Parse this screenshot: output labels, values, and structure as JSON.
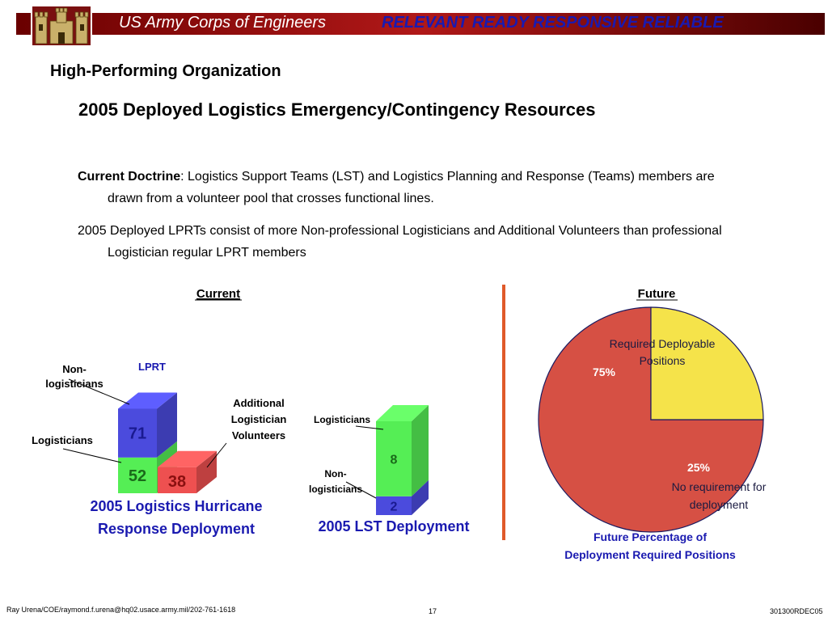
{
  "header": {
    "organization": "US Army Corps of Engineers",
    "motto": "RELEVANT   READY   RESPONSIVE  RELIABLE",
    "bar_color": "#8b0a0a",
    "motto_color": "#1a1ab0"
  },
  "section_title": "High-Performing Organization",
  "slide_title": "2005 Deployed Logistics Emergency/Contingency Resources",
  "paragraphs": {
    "doctrine_label": "Current Doctrine",
    "doctrine_line1": ": Logistics Support Teams (LST) and Logistics Planning and Response (Teams) members are",
    "doctrine_line2": "drawn from a volunteer pool that crosses functional lines.",
    "p2_line1": "2005 Deployed LPRTs consist of more Non-professional Logisticians and Additional Volunteers than professional",
    "p2_line2": "Logistician regular LPRT members"
  },
  "columns": {
    "current": "Current",
    "future": "Future"
  },
  "chart_data": [
    {
      "type": "bar",
      "title": "2005 Logistics Hurricane Response Deployment",
      "title_line1": "2005 Logistics Hurricane",
      "title_line2": "Response Deployment",
      "stack_label": "LPRT",
      "series": [
        {
          "name": "Logisticians",
          "value": 52,
          "color": "#55ee55"
        },
        {
          "name": "Non-logisticians",
          "value": 71,
          "color": "#4b4bdd"
        },
        {
          "name": "Additional Logistician Volunteers",
          "value": 38,
          "color": "#ee5050"
        }
      ],
      "callouts": {
        "non_logisticians_1": "Non-",
        "non_logisticians_2": "logisticians",
        "logisticians": "Logisticians",
        "additional_1": "Additional",
        "additional_2": "Logistician",
        "additional_3": "Volunteers"
      }
    },
    {
      "type": "bar",
      "title": "2005 LST Deployment",
      "series": [
        {
          "name": "Non-logisticians",
          "value": 2,
          "color": "#4b4bdd"
        },
        {
          "name": "Logisticians",
          "value": 8,
          "color": "#55ee55"
        }
      ],
      "callouts": {
        "logisticians": "Logisticians",
        "non_logisticians_1": "Non-",
        "non_logisticians_2": "logisticians"
      }
    },
    {
      "type": "pie",
      "title": "Future Percentage of Deployment Required Positions",
      "title_line1": "Future Percentage of",
      "title_line2": "Deployment Required Positions",
      "slices": [
        {
          "label": "Required Deployable Positions",
          "label_line1": "Required Deployable",
          "label_line2": "Positions",
          "value": 75,
          "value_label": "75%",
          "color": "#d65044"
        },
        {
          "label": "No requirement for deployment",
          "label_line1": "No requirement for",
          "label_line2": "deployment",
          "value": 25,
          "value_label": "25%",
          "color": "#f5e34a"
        }
      ]
    }
  ],
  "footer": {
    "contact": "Ray Urena/COE/raymond.f.urena@hq02.usace.army.mil/202-761-1618",
    "page": "17",
    "code": "301300RDEC05"
  }
}
